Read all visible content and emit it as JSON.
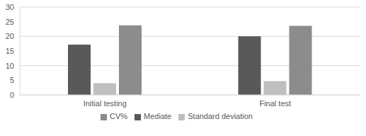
{
  "chart_data": {
    "type": "bar",
    "categories": [
      "Initial testing",
      "Final test"
    ],
    "series": [
      {
        "name": "Mediate",
        "color": "#595959",
        "values": [
          17.2,
          20
        ]
      },
      {
        "name": "Standard deviation",
        "color": "#bfbfbf",
        "values": [
          4,
          4.7
        ]
      },
      {
        "name": "CV%",
        "color": "#8c8c8c",
        "values": [
          23.8,
          23.6
        ]
      }
    ],
    "ylim": [
      0,
      30
    ],
    "yticks": [
      0,
      5,
      10,
      15,
      20,
      25,
      30
    ],
    "grid": true,
    "legend": "bottom"
  }
}
